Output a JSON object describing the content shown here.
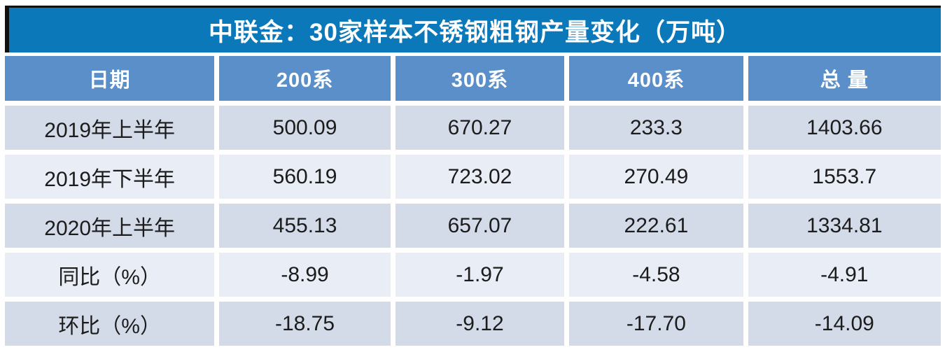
{
  "table": {
    "title": "中联金：30家样本不锈钢粗钢产量变化（万吨）",
    "columns": [
      "日期",
      "200系",
      "300系",
      "400系",
      "总 量"
    ],
    "rows": [
      {
        "label": "2019年上半年",
        "values": [
          "500.09",
          "670.27",
          "233.3",
          "1403.66"
        ]
      },
      {
        "label": "2019年下半年",
        "values": [
          "560.19",
          "723.02",
          "270.49",
          "1553.7"
        ]
      },
      {
        "label": "2020年上半年",
        "values": [
          "455.13",
          "657.07",
          "222.61",
          "1334.81"
        ]
      },
      {
        "label": "同比（%）",
        "values": [
          "-8.99",
          "-1.97",
          "-4.58",
          "-4.91"
        ]
      },
      {
        "label": "环比（%）",
        "values": [
          "-18.75",
          "-9.12",
          "-17.70",
          "-14.09"
        ]
      }
    ]
  },
  "colors": {
    "title_bar": "#0b78ba",
    "header_row": "#5a8fc9",
    "row_dark": "#d3dbe9",
    "row_light": "#e9edf5",
    "accent_border": "#101010",
    "header_text": "#ffffff",
    "data_text": "#1c1c1c"
  },
  "chart_data": {
    "type": "table",
    "title": "中联金：30家样本不锈钢粗钢产量变化（万吨）",
    "columns": [
      "日期",
      "200系",
      "300系",
      "400系",
      "总量"
    ],
    "rows": [
      [
        "2019年上半年",
        500.09,
        670.27,
        233.3,
        1403.66
      ],
      [
        "2019年下半年",
        560.19,
        723.02,
        270.49,
        1553.7
      ],
      [
        "2020年上半年",
        455.13,
        657.07,
        222.61,
        1334.81
      ],
      [
        "同比（%）",
        -8.99,
        -1.97,
        -4.58,
        -4.91
      ],
      [
        "环比（%）",
        -18.75,
        -9.12,
        -17.7,
        -14.09
      ]
    ],
    "units": "万吨",
    "notes": "同比/环比 rows are percent changes"
  }
}
